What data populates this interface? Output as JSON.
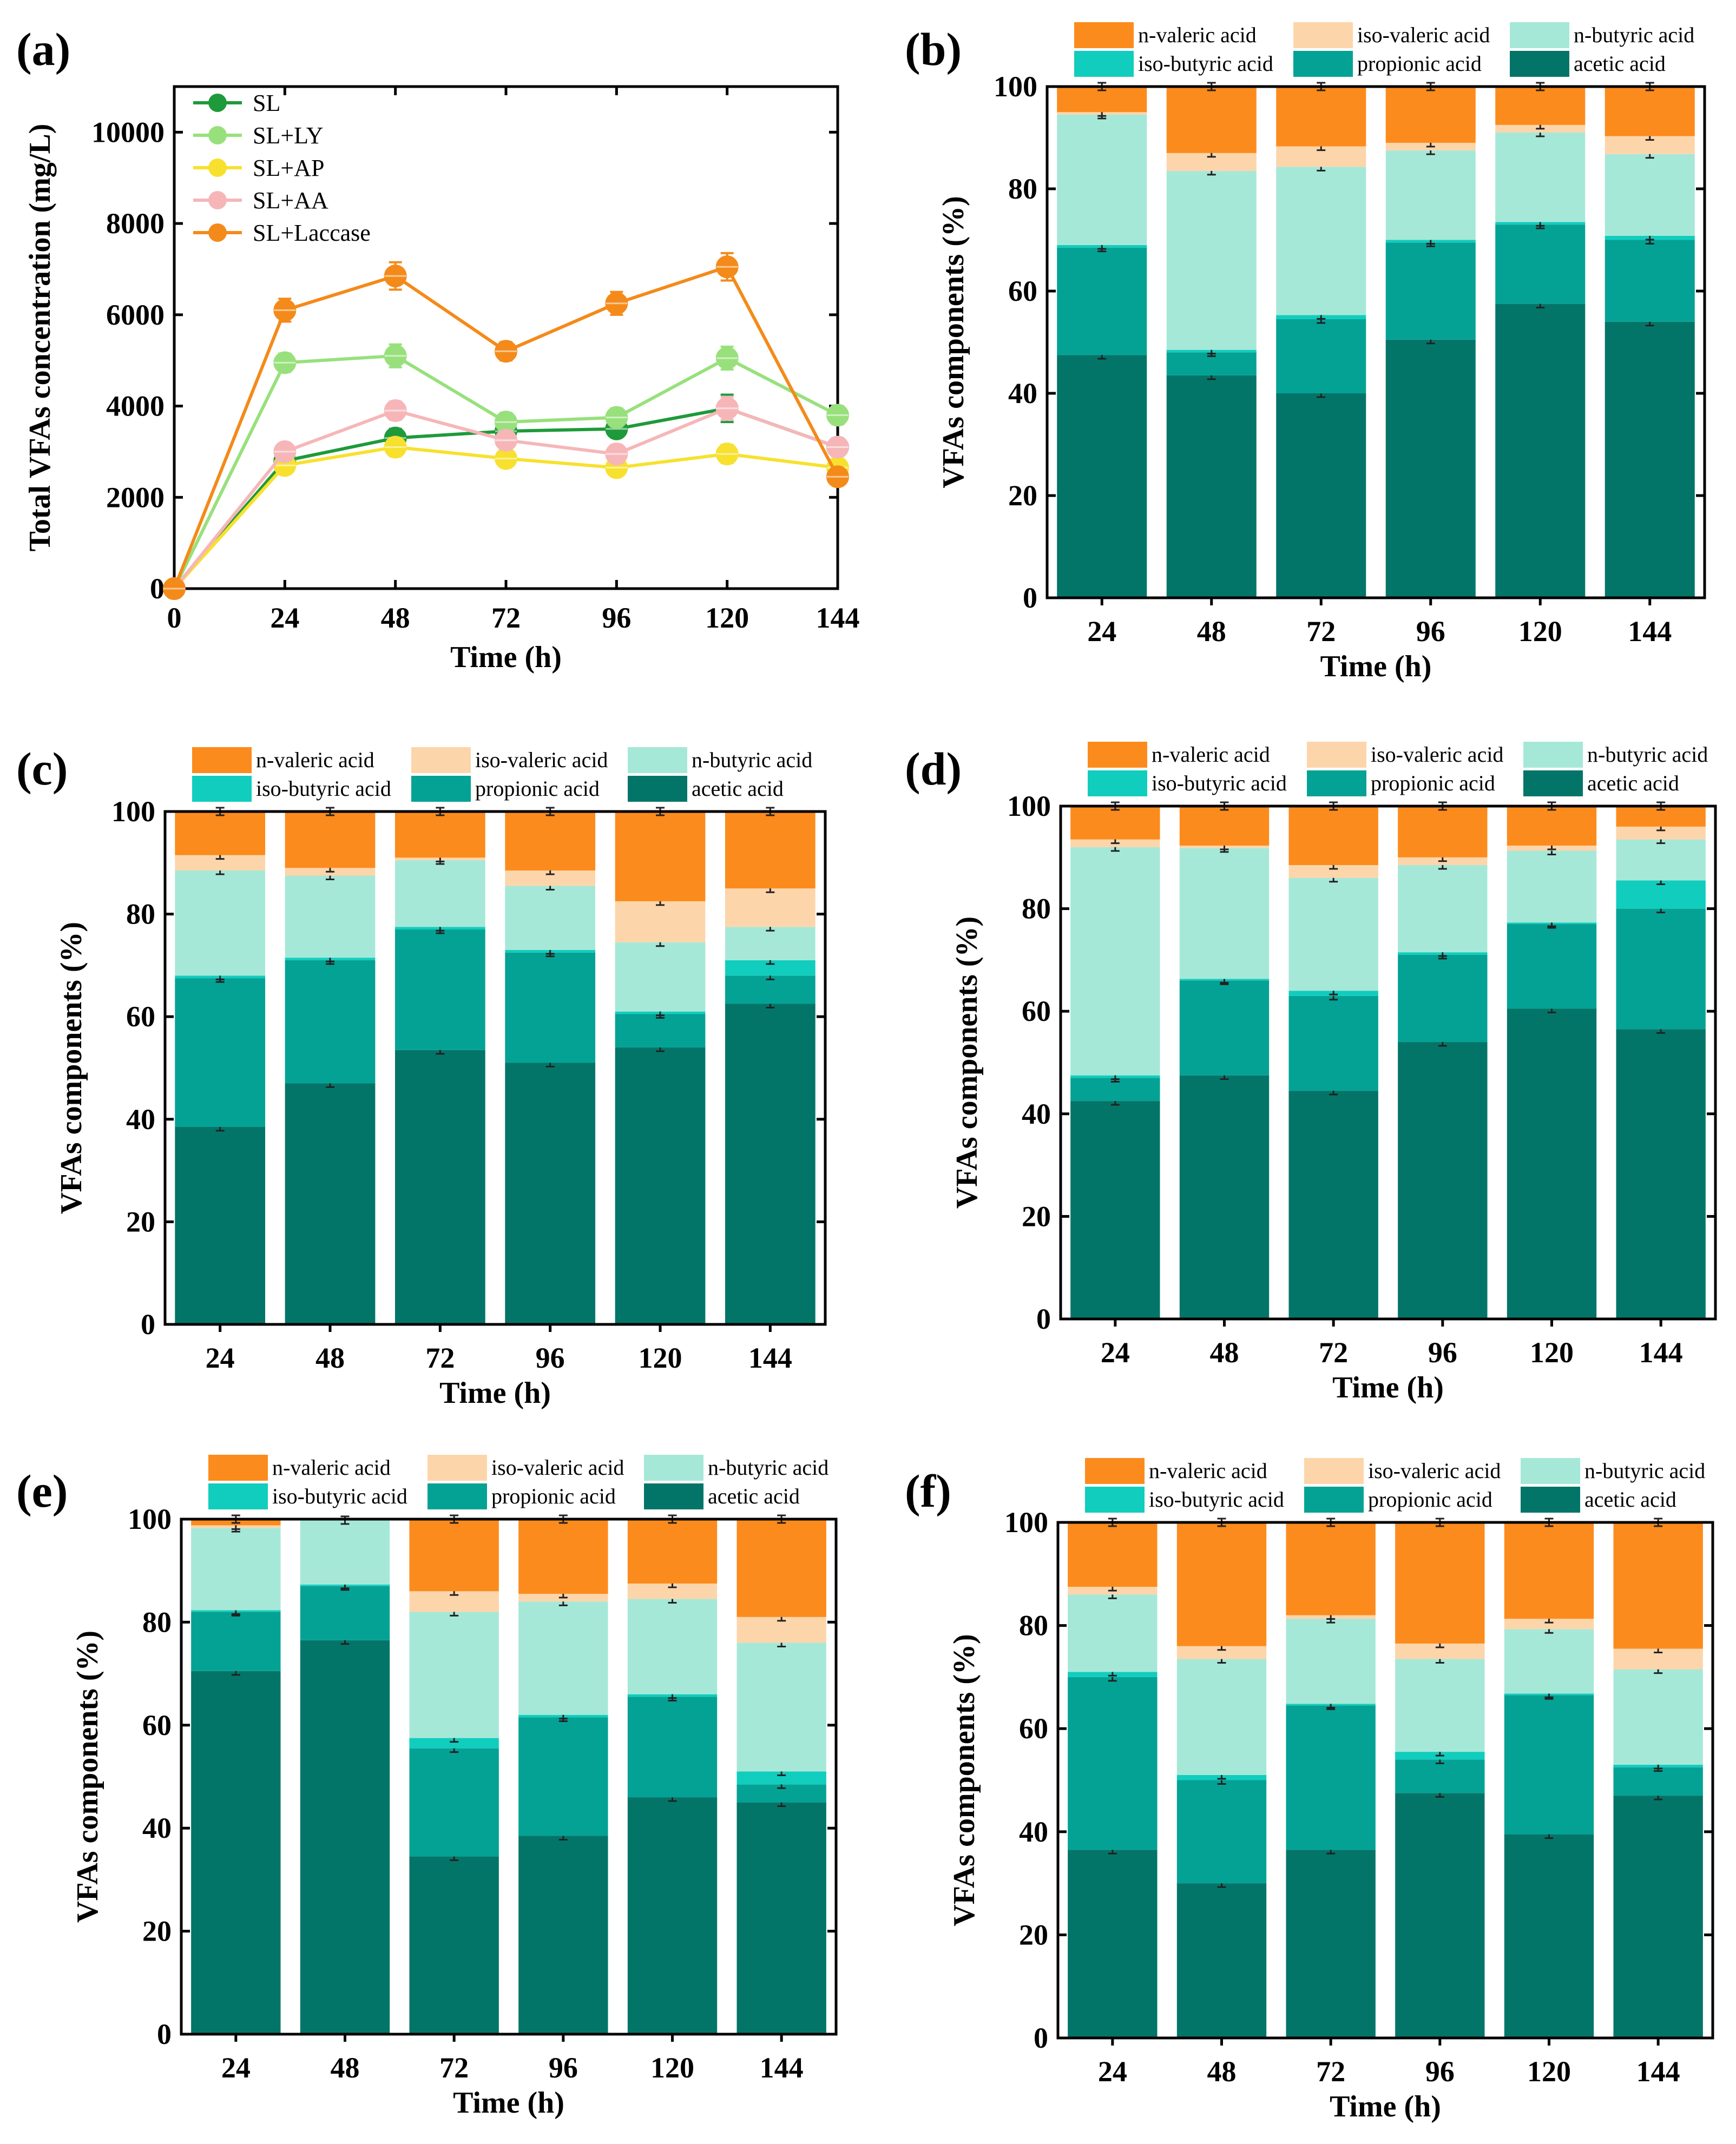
{
  "figure": {
    "colors": {
      "acetic acid": "#037568",
      "propionic acid": "#04A294",
      "iso-butyric acid": "#11CDBE",
      "n-butyric acid": "#A6E8D8",
      "iso-valeric acid": "#FDD5AA",
      "n-valeric acid": "#FC8B1D",
      "SL": "#1E9A3A",
      "SL+LY": "#98E07C",
      "SL+AP": "#F7E12E",
      "SL+AA": "#F6B6B8",
      "SL+Laccase": "#F48A1A"
    }
  },
  "chart_data": [
    {
      "panel": "(a)",
      "type": "line",
      "xlabel": "Time (h)",
      "ylabel": "Total VFAs concentration (mg/L)",
      "x": [
        0,
        24,
        48,
        72,
        96,
        120,
        144
      ],
      "xlim": [
        0,
        144
      ],
      "ylim": [
        0,
        11000
      ],
      "xticks": [
        0,
        24,
        48,
        72,
        96,
        120,
        144
      ],
      "yticks": [
        0,
        2000,
        4000,
        6000,
        8000,
        10000
      ],
      "legend_position": "top-left",
      "series": [
        {
          "name": "SL",
          "values": [
            0,
            2800,
            3300,
            3450,
            3500,
            3950,
            3100
          ],
          "errors": [
            0,
            150,
            200,
            150,
            150,
            300,
            150
          ]
        },
        {
          "name": "SL+LY",
          "values": [
            0,
            4950,
            5100,
            3650,
            3750,
            5050,
            3800
          ],
          "errors": [
            0,
            200,
            250,
            200,
            200,
            250,
            200
          ]
        },
        {
          "name": "SL+AP",
          "values": [
            0,
            2700,
            3100,
            2850,
            2650,
            2950,
            2650
          ],
          "errors": [
            0,
            150,
            200,
            150,
            150,
            200,
            150
          ]
        },
        {
          "name": "SL+AA",
          "values": [
            0,
            3000,
            3900,
            3250,
            2950,
            3950,
            3100
          ],
          "errors": [
            0,
            150,
            200,
            200,
            200,
            250,
            200
          ]
        },
        {
          "name": "SL+Laccase",
          "values": [
            0,
            6100,
            6850,
            5200,
            6250,
            7050,
            2450
          ],
          "errors": [
            0,
            250,
            300,
            200,
            250,
            300,
            150
          ]
        }
      ]
    },
    {
      "panel": "(b)",
      "type": "bar",
      "stacked": true,
      "xlabel": "Time (h)",
      "ylabel": "VFAs components (%)",
      "categories": [
        "24",
        "48",
        "72",
        "96",
        "120",
        "144"
      ],
      "ylim": [
        0,
        100
      ],
      "yticks": [
        0,
        20,
        40,
        60,
        80,
        100
      ],
      "legend": [
        "n-valeric acid",
        "iso-valeric acid",
        "n-butyric acid",
        "iso-butyric acid",
        "propionic acid",
        "acetic acid"
      ],
      "series": [
        {
          "name": "acetic acid",
          "values": [
            47.5,
            43.5,
            40.0,
            50.5,
            57.5,
            54.0
          ]
        },
        {
          "name": "propionic acid",
          "values": [
            21.0,
            4.5,
            14.5,
            19.0,
            15.5,
            16.0
          ]
        },
        {
          "name": "iso-butyric acid",
          "values": [
            0.5,
            0.5,
            0.8,
            0.5,
            0.5,
            0.8
          ]
        },
        {
          "name": "n-butyric acid",
          "values": [
            25.5,
            35.0,
            29.0,
            17.5,
            17.5,
            16.0
          ]
        },
        {
          "name": "iso-valeric acid",
          "values": [
            0.5,
            3.5,
            4.0,
            1.5,
            1.5,
            3.5
          ]
        },
        {
          "name": "n-valeric acid",
          "values": [
            5.0,
            13.0,
            11.7,
            11.0,
            7.5,
            9.7
          ]
        }
      ]
    },
    {
      "panel": "(c)",
      "type": "bar",
      "stacked": true,
      "xlabel": "Time (h)",
      "ylabel": "VFAs components (%)",
      "categories": [
        "24",
        "48",
        "72",
        "96",
        "120",
        "144"
      ],
      "ylim": [
        0,
        100
      ],
      "yticks": [
        0,
        20,
        40,
        60,
        80,
        100
      ],
      "legend": [
        "n-valeric acid",
        "iso-valeric acid",
        "n-butyric acid",
        "iso-butyric acid",
        "propionic acid",
        "acetic acid"
      ],
      "series": [
        {
          "name": "acetic acid",
          "values": [
            38.5,
            47.0,
            53.5,
            51.0,
            54.0,
            62.5
          ]
        },
        {
          "name": "propionic acid",
          "values": [
            29.0,
            24.0,
            23.5,
            21.5,
            6.5,
            5.5
          ]
        },
        {
          "name": "iso-butyric acid",
          "values": [
            0.5,
            0.5,
            0.5,
            0.5,
            0.5,
            3.0
          ]
        },
        {
          "name": "n-butyric acid",
          "values": [
            20.5,
            16.0,
            13.0,
            12.5,
            13.5,
            6.5
          ]
        },
        {
          "name": "iso-valeric acid",
          "values": [
            3.0,
            1.5,
            0.5,
            3.0,
            8.0,
            7.5
          ]
        },
        {
          "name": "n-valeric acid",
          "values": [
            8.5,
            11.0,
            9.0,
            11.5,
            17.5,
            15.0
          ]
        }
      ]
    },
    {
      "panel": "(d)",
      "type": "bar",
      "stacked": true,
      "xlabel": "Time (h)",
      "ylabel": "VFAs components (%)",
      "categories": [
        "24",
        "48",
        "72",
        "96",
        "120",
        "144"
      ],
      "ylim": [
        0,
        100
      ],
      "yticks": [
        0,
        20,
        40,
        60,
        80,
        100
      ],
      "legend": [
        "n-valeric acid",
        "iso-valeric acid",
        "n-butyric acid",
        "iso-butyric acid",
        "propionic acid",
        "acetic acid"
      ],
      "series": [
        {
          "name": "acetic acid",
          "values": [
            42.5,
            47.5,
            44.5,
            54.0,
            60.5,
            56.5
          ]
        },
        {
          "name": "propionic acid",
          "values": [
            4.5,
            18.5,
            18.5,
            17.0,
            16.5,
            23.5
          ]
        },
        {
          "name": "iso-butyric acid",
          "values": [
            0.5,
            0.3,
            1.0,
            0.5,
            0.3,
            5.5
          ]
        },
        {
          "name": "n-butyric acid",
          "values": [
            44.5,
            25.5,
            22.0,
            17.0,
            14.0,
            8.0
          ]
        },
        {
          "name": "iso-valeric acid",
          "values": [
            1.5,
            0.5,
            2.5,
            1.5,
            1.0,
            2.5
          ]
        },
        {
          "name": "n-valeric acid",
          "values": [
            6.5,
            7.7,
            11.5,
            10.0,
            7.7,
            4.0
          ]
        }
      ]
    },
    {
      "panel": "(e)",
      "type": "bar",
      "stacked": true,
      "xlabel": "Time (h)",
      "ylabel": "VFAs components (%)",
      "categories": [
        "24",
        "48",
        "72",
        "96",
        "120",
        "144"
      ],
      "ylim": [
        0,
        100
      ],
      "yticks": [
        0,
        20,
        40,
        60,
        80,
        100
      ],
      "legend": [
        "n-valeric acid",
        "iso-valeric acid",
        "n-butyric acid",
        "iso-butyric acid",
        "propionic acid",
        "acetic acid"
      ],
      "series": [
        {
          "name": "acetic acid",
          "values": [
            70.5,
            76.5,
            34.5,
            38.5,
            46.0,
            45.0
          ]
        },
        {
          "name": "propionic acid",
          "values": [
            11.5,
            10.5,
            21.0,
            23.0,
            19.5,
            3.5
          ]
        },
        {
          "name": "iso-butyric acid",
          "values": [
            0.3,
            0.3,
            2.0,
            0.5,
            0.5,
            2.5
          ]
        },
        {
          "name": "n-butyric acid",
          "values": [
            16.0,
            12.5,
            24.5,
            22.0,
            18.5,
            25.0
          ]
        },
        {
          "name": "iso-valeric acid",
          "values": [
            0.5,
            0.2,
            4.0,
            1.5,
            3.0,
            5.0
          ]
        },
        {
          "name": "n-valeric acid",
          "values": [
            1.2,
            0.0,
            14.0,
            14.5,
            12.5,
            19.0
          ]
        }
      ]
    },
    {
      "panel": "(f)",
      "type": "bar",
      "stacked": true,
      "xlabel": "Time (h)",
      "ylabel": "VFAs components (%)",
      "categories": [
        "24",
        "48",
        "72",
        "96",
        "120",
        "144"
      ],
      "ylim": [
        0,
        100
      ],
      "yticks": [
        0,
        20,
        40,
        60,
        80,
        100
      ],
      "legend": [
        "n-valeric acid",
        "iso-valeric acid",
        "n-butyric acid",
        "iso-butyric acid",
        "propionic acid",
        "acetic acid"
      ],
      "series": [
        {
          "name": "acetic acid",
          "values": [
            36.5,
            30.0,
            36.5,
            47.5,
            39.5,
            47.0
          ]
        },
        {
          "name": "propionic acid",
          "values": [
            33.5,
            20.0,
            28.0,
            6.5,
            27.0,
            5.5
          ]
        },
        {
          "name": "iso-butyric acid",
          "values": [
            1.0,
            1.0,
            0.3,
            1.5,
            0.3,
            0.5
          ]
        },
        {
          "name": "n-butyric acid",
          "values": [
            15.0,
            22.5,
            16.5,
            18.0,
            12.5,
            18.5
          ]
        },
        {
          "name": "iso-valeric acid",
          "values": [
            1.5,
            2.5,
            0.7,
            3.0,
            2.0,
            4.0
          ]
        },
        {
          "name": "n-valeric acid",
          "values": [
            12.5,
            24.0,
            18.0,
            23.5,
            18.7,
            24.5
          ]
        }
      ]
    }
  ]
}
